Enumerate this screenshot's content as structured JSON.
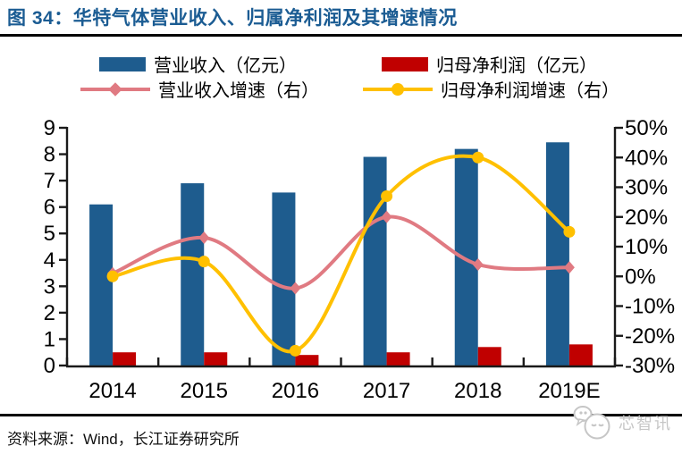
{
  "title": "图 34：华特气体营业收入、归属净利润及其增速情况",
  "source": "资料来源：Wind，长江证券研究所",
  "watermark": "芯智讯",
  "colors": {
    "title": "#1B5C93",
    "axis": "#1a1a1a",
    "watermark": "#c6c6c6",
    "rule": "#000000"
  },
  "chart_data": {
    "type": "bar",
    "subtype": "combo-bar-line-dual-axis",
    "categories": [
      "2014",
      "2015",
      "2016",
      "2017",
      "2018",
      "2019E"
    ],
    "series": [
      {
        "name": "营业收入（亿元）",
        "type": "bar",
        "axis": "left",
        "color": "#1E5C8E",
        "values": [
          6.1,
          6.9,
          6.55,
          7.9,
          8.2,
          8.45
        ]
      },
      {
        "name": "归母净利润（亿元）",
        "type": "bar",
        "axis": "left",
        "color": "#C00000",
        "values": [
          0.5,
          0.5,
          0.4,
          0.5,
          0.7,
          0.8
        ]
      },
      {
        "name": "营业收入增速（右）",
        "type": "line",
        "axis": "right",
        "color": "#E07A82",
        "marker": "diamond",
        "values": [
          1,
          13,
          -4,
          20,
          4,
          3
        ],
        "unit": "%"
      },
      {
        "name": "归母净利润增速（右）",
        "type": "line",
        "axis": "right",
        "color": "#FFC000",
        "marker": "circle",
        "values": [
          0,
          5,
          -25,
          27,
          40,
          15
        ],
        "unit": "%"
      }
    ],
    "left_axis": {
      "min": 0,
      "max": 9,
      "step": 1,
      "tick_labels": [
        "9",
        "8",
        "7",
        "6",
        "5",
        "4",
        "3",
        "2",
        "1",
        "0"
      ]
    },
    "right_axis": {
      "min": -30,
      "max": 50,
      "step": 10,
      "unit": "%",
      "tick_labels": [
        "50%",
        "40%",
        "30%",
        "20%",
        "10%",
        "0%",
        "-10%",
        "-20%",
        "-30%"
      ]
    },
    "grid": false,
    "legend_position": "top"
  }
}
